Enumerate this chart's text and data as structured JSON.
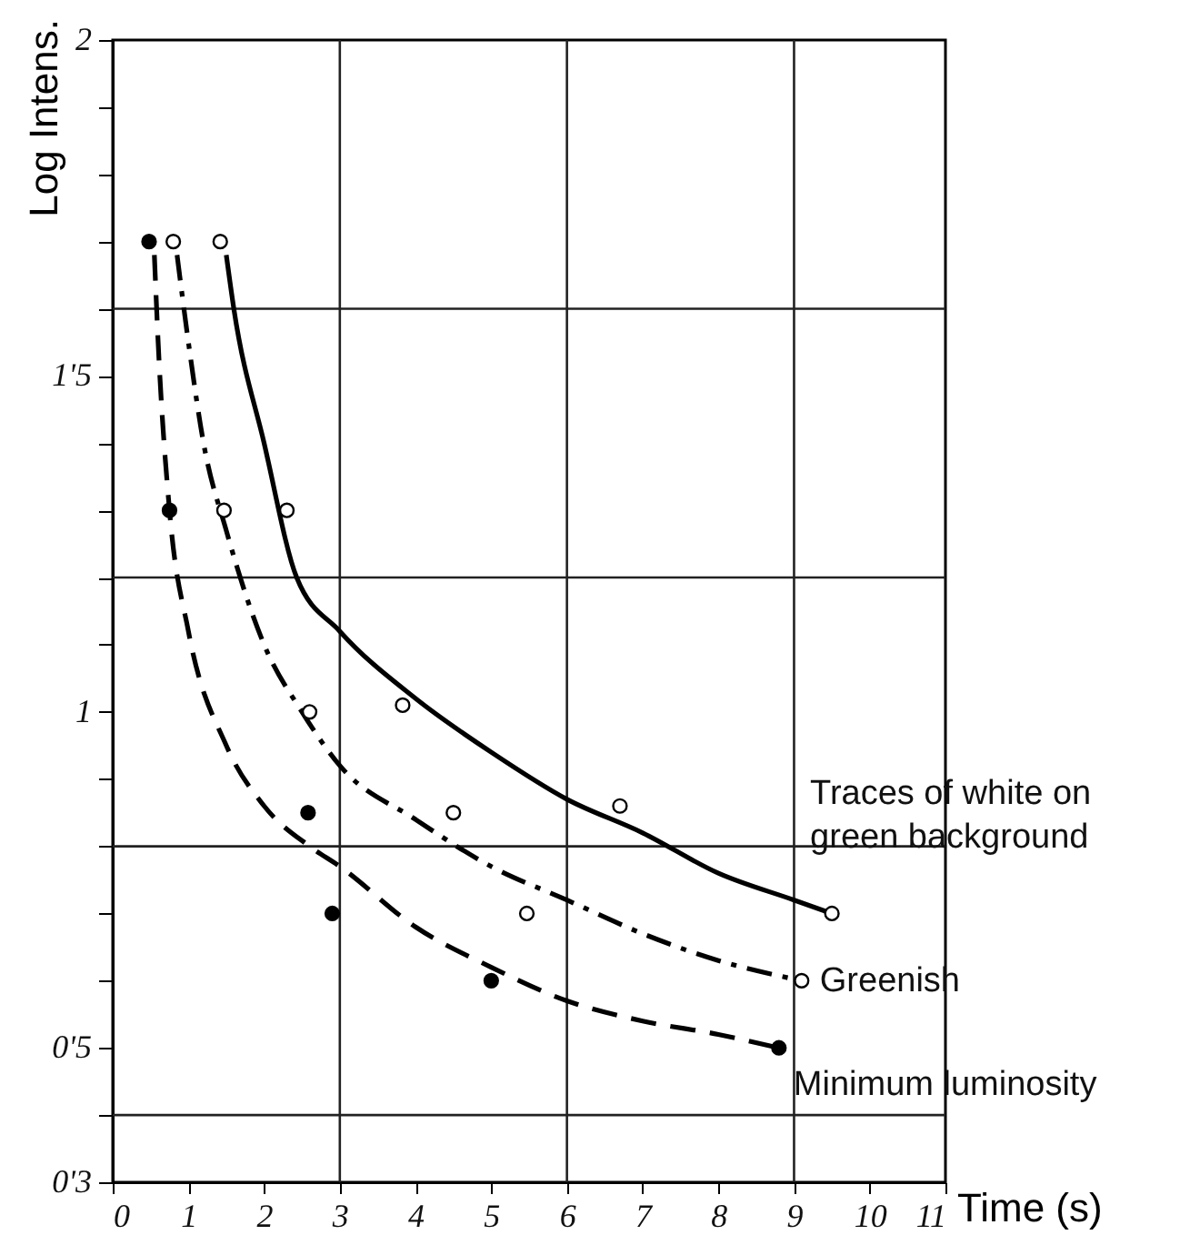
{
  "chart_data": {
    "type": "line",
    "xlabel": "Time (s)",
    "ylabel": "Log Intens.",
    "xlim": [
      0,
      11
    ],
    "ylim": [
      0.3,
      2
    ],
    "xticks": [
      0,
      1,
      2,
      3,
      4,
      5,
      6,
      7,
      8,
      9,
      10,
      11
    ],
    "yticks": [
      {
        "value": 0.3,
        "label": "0'3"
      },
      {
        "value": 0.4,
        "label": null
      },
      {
        "value": 0.5,
        "label": "0'5"
      },
      {
        "value": 0.6,
        "label": null
      },
      {
        "value": 0.7,
        "label": null
      },
      {
        "value": 0.8,
        "label": null
      },
      {
        "value": 0.9,
        "label": null
      },
      1,
      {
        "value": 1.1,
        "label": null
      },
      {
        "value": 1.2,
        "label": null
      },
      {
        "value": 1.3,
        "label": null
      },
      {
        "value": 1.4,
        "label": null
      },
      {
        "value": 1.5,
        "label": "1'5"
      },
      {
        "value": 1.6,
        "label": null
      },
      {
        "value": 1.7,
        "label": null
      },
      {
        "value": 1.8,
        "label": null
      },
      {
        "value": 1.9,
        "label": null
      },
      2
    ],
    "grid": false,
    "ref_lines": [
      {
        "axis": "y",
        "value": 1.6
      },
      {
        "axis": "y",
        "value": 1.2
      },
      {
        "axis": "y",
        "value": 0.8
      },
      {
        "axis": "y",
        "value": 0.4
      },
      {
        "axis": "x",
        "value": 3
      },
      {
        "axis": "x",
        "value": 6
      },
      {
        "axis": "x",
        "value": 9
      }
    ],
    "series": [
      {
        "name": "Traces of white on green background",
        "color": "#000000",
        "line_style": "solid",
        "marker": "none",
        "x": [
          1.5,
          1.6,
          2,
          2.43,
          3,
          4,
          5,
          6,
          7,
          8,
          9,
          9.5
        ],
        "values": [
          1.68,
          1.6,
          1.4,
          1.2,
          1.12,
          1.02,
          0.94,
          0.87,
          0.82,
          0.76,
          0.72,
          0.7
        ]
      },
      {
        "name": "Greenish",
        "color": "#000000",
        "line_style": "dashdot",
        "marker": "none",
        "x": [
          0.85,
          1,
          1.2,
          1.5,
          2,
          2.5,
          3,
          4,
          5,
          6,
          7,
          8,
          9.1
        ],
        "values": [
          1.68,
          1.55,
          1.4,
          1.27,
          1.1,
          1.0,
          0.92,
          0.84,
          0.77,
          0.72,
          0.67,
          0.63,
          0.6
        ]
      },
      {
        "name": "Minimum luminosity",
        "color": "#000000",
        "line_style": "dashed",
        "marker": "none",
        "x": [
          0.55,
          0.6,
          0.75,
          1,
          1.5,
          2,
          2.6,
          3,
          4,
          5,
          6,
          7,
          8,
          8.8
        ],
        "values": [
          1.68,
          1.55,
          1.3,
          1.12,
          0.95,
          0.86,
          0.8,
          0.77,
          0.68,
          0.62,
          0.57,
          0.54,
          0.52,
          0.5
        ]
      },
      {
        "type": "scatter",
        "color": "#ffffff",
        "marker": "circle",
        "x": [
          1.42,
          2.3,
          3.83,
          6.7,
          9.5
        ],
        "values": [
          1.7,
          1.3,
          1.01,
          0.86,
          0.7
        ]
      },
      {
        "type": "scatter",
        "color": "#ffffff",
        "marker": "circle",
        "x": [
          0.8,
          1.47,
          2.6,
          4.5,
          5.47,
          9.1
        ],
        "values": [
          1.7,
          1.3,
          1.0,
          0.85,
          0.7,
          0.6
        ]
      },
      {
        "type": "scatter",
        "color": "#000000",
        "marker": "circle",
        "x": [
          0.48,
          0.75,
          2.58,
          2.9,
          5.0,
          8.8
        ],
        "values": [
          1.7,
          1.3,
          0.85,
          0.7,
          0.6,
          0.5
        ]
      }
    ]
  }
}
